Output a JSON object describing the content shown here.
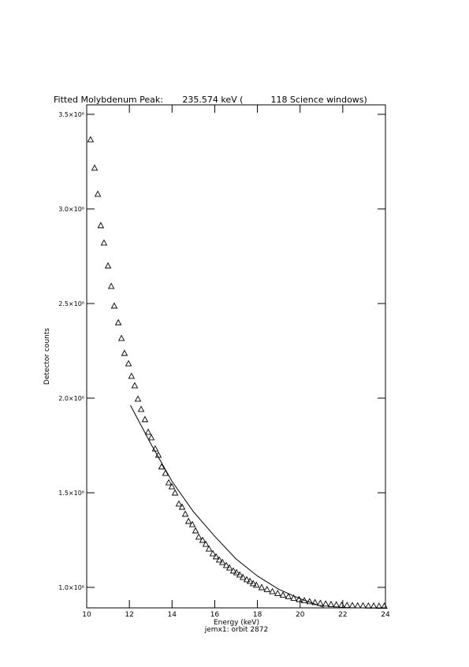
{
  "chart_data": {
    "type": "scatter",
    "title": "Fitted Molybdenum Peak:       235.574 keV (          118 Science windows)",
    "xlabel": "Energy (keV)",
    "subtitle": "jemx1: orbit 2872",
    "ylabel": "Detector counts",
    "xlim": [
      10,
      24
    ],
    "xticks": [
      10,
      12,
      14,
      16,
      18,
      20,
      22,
      24
    ],
    "ylim": [
      891700,
      3550000
    ],
    "yticks": [
      {
        "value": 1000000,
        "label": "1.0×10⁶"
      },
      {
        "value": 1500000,
        "label": "1.5×10⁶"
      },
      {
        "value": 2000000,
        "label": "2.0×10⁶"
      },
      {
        "value": 2500000,
        "label": "2.5×10⁶"
      },
      {
        "value": 3000000,
        "label": "3.0×10⁶"
      },
      {
        "value": 3500000,
        "label": "3.5×10⁶"
      }
    ],
    "series": [
      {
        "type": "scatter",
        "color": "#000000",
        "x": [
          10.18,
          10.37,
          10.52,
          10.66,
          10.81,
          11.0,
          11.15,
          11.29,
          11.48,
          11.63,
          11.77,
          11.96,
          12.1,
          12.25,
          12.4,
          12.55,
          12.73,
          12.88,
          13.03,
          13.21,
          13.36,
          13.51,
          13.69,
          13.84,
          13.99,
          14.14,
          14.32,
          14.47,
          14.62,
          14.77,
          14.95,
          15.1,
          15.25,
          15.43,
          15.58,
          15.73,
          15.91,
          16.06,
          16.21,
          16.36,
          16.54,
          16.69,
          16.87,
          17.02,
          17.17,
          17.32,
          17.5,
          17.65,
          17.8,
          17.95,
          18.2,
          18.45,
          18.7,
          18.95,
          19.2,
          19.45,
          19.7,
          19.95,
          20.2,
          20.45,
          20.7,
          20.95,
          21.2,
          21.45,
          21.7,
          21.95,
          22.2,
          22.45,
          22.7,
          22.95,
          23.2,
          23.45,
          23.7,
          23.95
        ],
        "values": [
          3367000,
          3217000,
          3079000,
          2913000,
          2821000,
          2700000,
          2592000,
          2488000,
          2400000,
          2317000,
          2238000,
          2183000,
          2117000,
          2067000,
          1996000,
          1942000,
          1888000,
          1821000,
          1792000,
          1733000,
          1700000,
          1638000,
          1604000,
          1554000,
          1533000,
          1500000,
          1442000,
          1425000,
          1388000,
          1350000,
          1333000,
          1300000,
          1267000,
          1250000,
          1229000,
          1204000,
          1179000,
          1163000,
          1146000,
          1133000,
          1117000,
          1104000,
          1088000,
          1079000,
          1067000,
          1054000,
          1042000,
          1033000,
          1021000,
          1013000,
          1000000,
          990000,
          979000,
          969000,
          960000,
          952000,
          944000,
          937000,
          931000,
          926000,
          921000,
          917000,
          914000,
          911000,
          909000,
          907000,
          906000,
          905000,
          904000,
          904000,
          903000,
          903000,
          902000,
          902000
        ]
      },
      {
        "type": "line",
        "color": "#000000",
        "x": [
          12.05,
          13,
          14,
          15,
          16,
          17,
          18,
          19,
          20,
          20.5,
          21.1
        ],
        "values": [
          1962000,
          1760000,
          1560000,
          1400000,
          1270000,
          1150000,
          1060000,
          990000,
          940000,
          920000,
          895000
        ]
      }
    ]
  }
}
